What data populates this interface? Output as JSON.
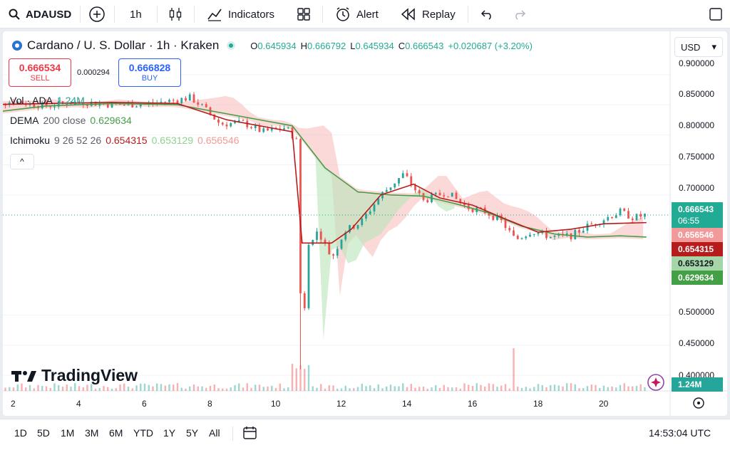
{
  "toolbar": {
    "symbol": "ADAUSD",
    "interval": "1h",
    "indicators": "Indicators",
    "alert": "Alert",
    "replay": "Replay"
  },
  "legend": {
    "title": "Cardano / U. S. Dollar · 1h · Kraken",
    "o_label": "O",
    "o": "0.645934",
    "h_label": "H",
    "h": "0.666792",
    "l_label": "L",
    "l": "0.645934",
    "c_label": "C",
    "c": "0.666543",
    "change": "+0.020687 (+3.20%)"
  },
  "trade": {
    "sell_price": "0.666534",
    "sell_label": "SELL",
    "spread": "0.000294",
    "buy_price": "0.666828",
    "buy_label": "BUY"
  },
  "indicators": {
    "vol_name": "Vol · ADA",
    "vol_value": "1.24M",
    "dema_name": "DEMA",
    "dema_params": "200 close",
    "dema_value": "0.629634",
    "ichi_name": "Ichimoku",
    "ichi_params": "9 26 52 26",
    "ichi_v1": "0.654315",
    "ichi_v2": "0.653129",
    "ichi_v3": "0.656546",
    "collapse": "^"
  },
  "currency": "USD",
  "price_axis": [
    "0.900000",
    "0.850000",
    "0.800000",
    "0.750000",
    "0.700000",
    "0.500000",
    "0.450000",
    "0.400000"
  ],
  "price_labels": {
    "last": "0.666543",
    "countdown": "06:55",
    "ichi_a": "0.656546",
    "ichi_b": "0.654315",
    "ichi_c": "0.653129",
    "dema": "0.629634",
    "vol": "1.24M"
  },
  "time_axis": [
    "2",
    "4",
    "6",
    "8",
    "10",
    "12",
    "14",
    "16",
    "18",
    "20"
  ],
  "ranges": [
    "1D",
    "5D",
    "1M",
    "3M",
    "6M",
    "YTD",
    "1Y",
    "5Y",
    "All"
  ],
  "clock": "14:53:04 UTC",
  "logo": "TradingView",
  "colors": {
    "up": "#26a69a",
    "down": "#ef5350",
    "dema": "#43a047",
    "ichi_conv": "#b71c1c",
    "cloud_red": "#f7b4b4",
    "cloud_green": "#b9e4b9"
  },
  "chart_data": {
    "type": "line",
    "title": "Cardano / U. S. Dollar · 1h · Kraken",
    "x_ticks": [
      "2",
      "4",
      "6",
      "8",
      "10",
      "12",
      "14",
      "16",
      "18",
      "20"
    ],
    "ylim": [
      0.38,
      0.92
    ],
    "series": [
      {
        "name": "Price",
        "points": [
          [
            1,
            0.852
          ],
          [
            2,
            0.855
          ],
          [
            3,
            0.848
          ],
          [
            4,
            0.855
          ],
          [
            5,
            0.85
          ],
          [
            6,
            0.851
          ],
          [
            7,
            0.858
          ],
          [
            7.4,
            0.862
          ],
          [
            7.8,
            0.845
          ],
          [
            8.3,
            0.818
          ],
          [
            9,
            0.82
          ],
          [
            9.6,
            0.805
          ],
          [
            10.3,
            0.812
          ],
          [
            10.65,
            0.79
          ],
          [
            10.8,
            0.41
          ],
          [
            10.95,
            0.62
          ],
          [
            11.3,
            0.64
          ],
          [
            11.7,
            0.595
          ],
          [
            12.1,
            0.64
          ],
          [
            12.6,
            0.655
          ],
          [
            13.2,
            0.7
          ],
          [
            13.9,
            0.735
          ],
          [
            14.5,
            0.69
          ],
          [
            15.2,
            0.705
          ],
          [
            15.8,
            0.68
          ],
          [
            16.4,
            0.672
          ],
          [
            16.9,
            0.655
          ],
          [
            17.3,
            0.625
          ],
          [
            17.8,
            0.64
          ],
          [
            18.4,
            0.63
          ],
          [
            19.0,
            0.632
          ],
          [
            19.5,
            0.648
          ],
          [
            20.0,
            0.66
          ],
          [
            20.5,
            0.672
          ],
          [
            20.9,
            0.662
          ],
          [
            21.3,
            0.667
          ]
        ]
      },
      {
        "name": "DEMA 200",
        "points": [
          [
            1,
            0.835
          ],
          [
            3,
            0.848
          ],
          [
            5,
            0.852
          ],
          [
            7,
            0.85
          ],
          [
            9,
            0.83
          ],
          [
            10.5,
            0.815
          ],
          [
            11.5,
            0.745
          ],
          [
            12.5,
            0.705
          ],
          [
            13.5,
            0.7
          ],
          [
            14.5,
            0.698
          ],
          [
            15.5,
            0.685
          ],
          [
            16.5,
            0.67
          ],
          [
            17.5,
            0.648
          ],
          [
            18.5,
            0.635
          ],
          [
            19.5,
            0.63
          ],
          [
            20.5,
            0.632
          ],
          [
            21.3,
            0.63
          ]
        ]
      },
      {
        "name": "Ichimoku Conversion",
        "points": [
          [
            1,
            0.85
          ],
          [
            3,
            0.852
          ],
          [
            5,
            0.854
          ],
          [
            7,
            0.852
          ],
          [
            8.5,
            0.825
          ],
          [
            10.5,
            0.805
          ],
          [
            10.8,
            0.62
          ],
          [
            11.7,
            0.62
          ],
          [
            12.3,
            0.643
          ],
          [
            13.2,
            0.7
          ],
          [
            14.2,
            0.718
          ],
          [
            15,
            0.695
          ],
          [
            16,
            0.683
          ],
          [
            17,
            0.66
          ],
          [
            18,
            0.638
          ],
          [
            19,
            0.643
          ],
          [
            20,
            0.652
          ],
          [
            21.3,
            0.654
          ]
        ]
      }
    ],
    "volume_last": "1.24M"
  }
}
